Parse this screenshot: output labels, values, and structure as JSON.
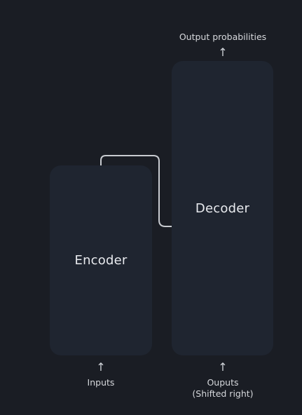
{
  "encoder": {
    "label": "Encoder",
    "input_label": "Inputs",
    "arrow_glyph": "↑"
  },
  "decoder": {
    "label": "Decoder",
    "input_label_line1": "Ouputs",
    "input_label_line2": "(Shifted right)",
    "output_label": "Output probabilities",
    "arrow_glyph": "↑"
  },
  "colors": {
    "background": "#1a1d24",
    "box": "#1f2530",
    "connector": "#c8cbd0"
  }
}
